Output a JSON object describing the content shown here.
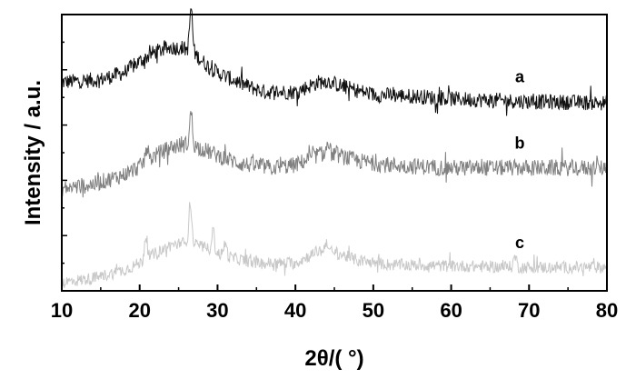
{
  "chart_data": {
    "type": "line",
    "xlabel": "2θ/(   °)",
    "ylabel": "Intensity / a.u.",
    "xlim": [
      10,
      80
    ],
    "xticks": [
      10,
      20,
      30,
      40,
      50,
      60,
      70,
      80
    ],
    "ylim": [
      0,
      10
    ],
    "yticks_labeled": false,
    "grid": false,
    "legend": "none; series labeled inline at right",
    "colors": {
      "a": "#111111",
      "b": "#808080",
      "c": "#c8c8c8"
    },
    "series": [
      {
        "name": "a",
        "color": "#111111",
        "noise": 0.28,
        "points": [
          [
            10,
            7.55
          ],
          [
            15,
            7.65
          ],
          [
            18,
            7.9
          ],
          [
            20,
            8.3
          ],
          [
            22,
            8.65
          ],
          [
            24,
            8.8
          ],
          [
            25.5,
            8.8
          ],
          [
            27,
            8.6
          ],
          [
            28.5,
            8.2
          ],
          [
            30,
            7.9
          ],
          [
            33,
            7.5
          ],
          [
            36,
            7.2
          ],
          [
            40,
            7.2
          ],
          [
            43,
            7.55
          ],
          [
            44,
            7.6
          ],
          [
            46,
            7.4
          ],
          [
            50,
            7.1
          ],
          [
            55,
            7.05
          ],
          [
            60,
            6.95
          ],
          [
            70,
            6.85
          ],
          [
            80,
            6.8
          ]
        ],
        "peaks": [
          [
            26.6,
            1.1
          ],
          [
            26.6,
            0.5
          ]
        ]
      },
      {
        "name": "b",
        "color": "#808080",
        "noise": 0.3,
        "points": [
          [
            10,
            3.7
          ],
          [
            14,
            3.85
          ],
          [
            18,
            4.2
          ],
          [
            20,
            4.5
          ],
          [
            22,
            4.9
          ],
          [
            24,
            5.2
          ],
          [
            26,
            5.3
          ],
          [
            27.5,
            5.2
          ],
          [
            30,
            4.9
          ],
          [
            33,
            4.6
          ],
          [
            37,
            4.45
          ],
          [
            40,
            4.55
          ],
          [
            43,
            4.95
          ],
          [
            45,
            4.95
          ],
          [
            48,
            4.7
          ],
          [
            52,
            4.55
          ],
          [
            60,
            4.45
          ],
          [
            70,
            4.45
          ],
          [
            80,
            4.45
          ]
        ],
        "peaks": [
          [
            20.9,
            0.6
          ],
          [
            26.6,
            1.2
          ],
          [
            44.2,
            0.4
          ]
        ]
      },
      {
        "name": "c",
        "color": "#c8c8c8",
        "noise": 0.22,
        "points": [
          [
            10,
            0.3
          ],
          [
            14,
            0.45
          ],
          [
            18,
            0.75
          ],
          [
            20,
            1.0
          ],
          [
            22,
            1.35
          ],
          [
            24,
            1.65
          ],
          [
            26,
            1.75
          ],
          [
            28,
            1.6
          ],
          [
            31,
            1.25
          ],
          [
            35,
            1.0
          ],
          [
            40,
            1.0
          ],
          [
            43,
            1.45
          ],
          [
            45,
            1.4
          ],
          [
            48,
            1.1
          ],
          [
            52,
            0.95
          ],
          [
            60,
            0.9
          ],
          [
            70,
            0.85
          ],
          [
            80,
            0.85
          ]
        ],
        "peaks": [
          [
            20.8,
            0.9
          ],
          [
            26.5,
            1.5
          ],
          [
            29.4,
            0.8
          ],
          [
            31.0,
            0.5
          ],
          [
            44.0,
            0.4
          ],
          [
            68.2,
            0.4
          ]
        ]
      }
    ]
  }
}
